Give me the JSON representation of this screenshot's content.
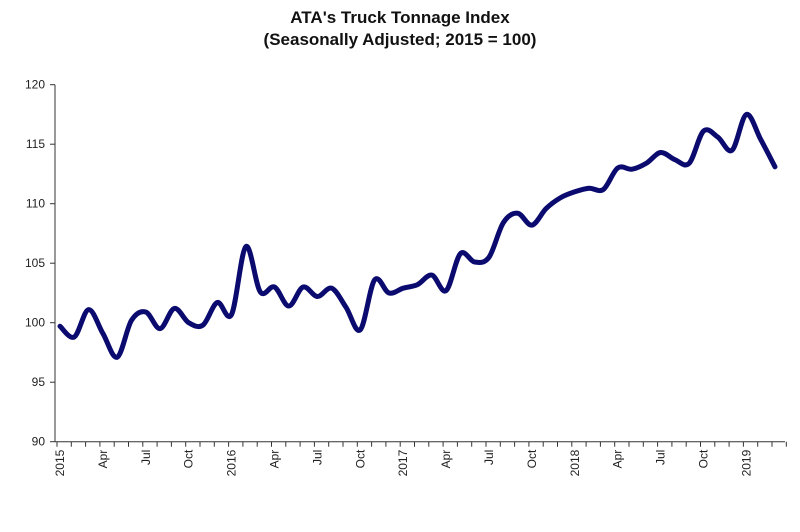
{
  "chart_data": {
    "type": "line",
    "title": "ATA's Truck Tonnage Index",
    "subtitle": "(Seasonally Adjusted; 2015 = 100)",
    "xlabel": "",
    "ylabel": "",
    "ylim": [
      90,
      120
    ],
    "yticks": [
      90,
      95,
      100,
      105,
      110,
      115,
      120
    ],
    "x_start": "2015-01",
    "x_frequency": "monthly",
    "xtick_labels": [
      "2015",
      "Apr",
      "Jul",
      "Oct",
      "2016",
      "Apr",
      "Jul",
      "Oct",
      "2017",
      "Apr",
      "Jul",
      "Oct",
      "2018",
      "Apr",
      "Jul",
      "Oct",
      "2019"
    ],
    "grid": false,
    "line_color": "#0b0b6f",
    "series": [
      {
        "values": [
          99.7,
          98.8,
          101.1,
          99.1,
          97.1,
          100.2,
          100.9,
          99.5,
          101.2,
          100.0,
          99.8,
          101.7,
          100.7,
          106.4,
          102.6,
          103.0,
          101.4,
          103.0,
          102.2,
          102.9,
          101.3,
          99.4,
          103.6,
          102.5,
          102.9,
          103.2,
          104.0,
          102.7,
          105.8,
          105.1,
          105.5,
          108.4,
          109.2,
          108.2,
          109.6,
          110.5,
          111.0,
          111.3,
          111.2,
          113.0,
          112.9,
          113.4,
          114.3,
          113.7,
          113.4,
          116.1,
          115.6,
          114.5,
          117.5,
          115.4,
          113.1
        ]
      }
    ]
  }
}
